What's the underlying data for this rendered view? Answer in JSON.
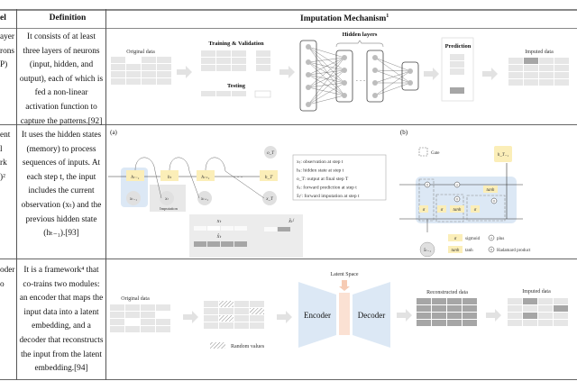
{
  "header": {
    "col_model": "el",
    "col_definition": "Definition",
    "col_mechanism": "Imputation Mechanism",
    "col_mechanism_sup": "1"
  },
  "rows": [
    {
      "model_lines": [
        "ayer",
        "rons",
        "P)"
      ],
      "definition_lines": [
        "It consists of at least",
        "three layers of neurons",
        "(input, hidden, and",
        "output), each of which is",
        "fed a non-linear",
        "activation function to",
        "capture the patterns.[92]"
      ],
      "diagram": {
        "original": "Original data",
        "train": "Training & Validation",
        "test": "Testing",
        "hidden": "Hidden layers",
        "ellipsis": "· · ·",
        "prediction": "Prediction",
        "imputed": "Imputed data"
      }
    },
    {
      "model_lines": [
        "ent",
        "l",
        "rk",
        ")²"
      ],
      "definition_lines": [
        "It uses the hidden states",
        "(memory) to process",
        "sequences of inputs.  At",
        "each step t, the input",
        "includes the current",
        "observation (xₜ) and the",
        "previous hidden state",
        "(hₜ₋₁).[93]"
      ],
      "diagram": {
        "label_a": "(a)",
        "label_b": "(b)",
        "h_nodes": [
          "hₜ₋₁",
          "hₜ",
          "hₜ₊₁",
          "h_T"
        ],
        "x_nodes": [
          "xₜ₋₁",
          "xₜ",
          "xₜ₊₁",
          "x_T"
        ],
        "o_node": "o_T",
        "dots": "· · ·",
        "imputation": "Imputation",
        "x_row": "xₜ",
        "xhat_row": "x̂ₜ",
        "ximp_row": "x̂ₜᶠ",
        "legend": [
          "xₜ: observation at step t",
          "hₜ: hidden state at step t",
          "o_T: output at final step T",
          "x̂ₜ: forward prediction at step t",
          "x̂ₜᶠ: forward imputation at step t"
        ],
        "gate_label": "Gate",
        "h_out": "h_T₋₁",
        "x_in": "x̂ₜ₋₁",
        "sigma": "σ",
        "tanh": "tanh",
        "sym_legend": [
          {
            "sym": "σ",
            "text": "sigmoid"
          },
          {
            "sym": "+",
            "text": "plus"
          },
          {
            "sym": "tanh",
            "text": "tanh"
          },
          {
            "sym": "×",
            "text": "Hadamard product"
          }
        ]
      }
    },
    {
      "model_lines": [
        "oder",
        "o"
      ],
      "definition_lines": [
        "It is a framework⁴ that",
        "co-trains two modules:",
        "an encoder that maps the",
        "input data into a latent",
        "embedding, and a",
        "decoder that reconstructs",
        "the input from the latent",
        "embedding.[94]"
      ],
      "diagram": {
        "original": "Original data",
        "random": "Random values",
        "latent": "Latent Space",
        "encoder": "Encoder",
        "decoder": "Decoder",
        "reconstructed": "Reconstructed data",
        "imputed": "Imputed data"
      }
    }
  ],
  "colors": {
    "cell": "#e6e6e6",
    "dark_cell": "#a6a6a6",
    "node": "#bdbdbd",
    "yellow": "#fbeeb8",
    "blue": "#dce8f5",
    "latent": "#fbe1d3"
  }
}
